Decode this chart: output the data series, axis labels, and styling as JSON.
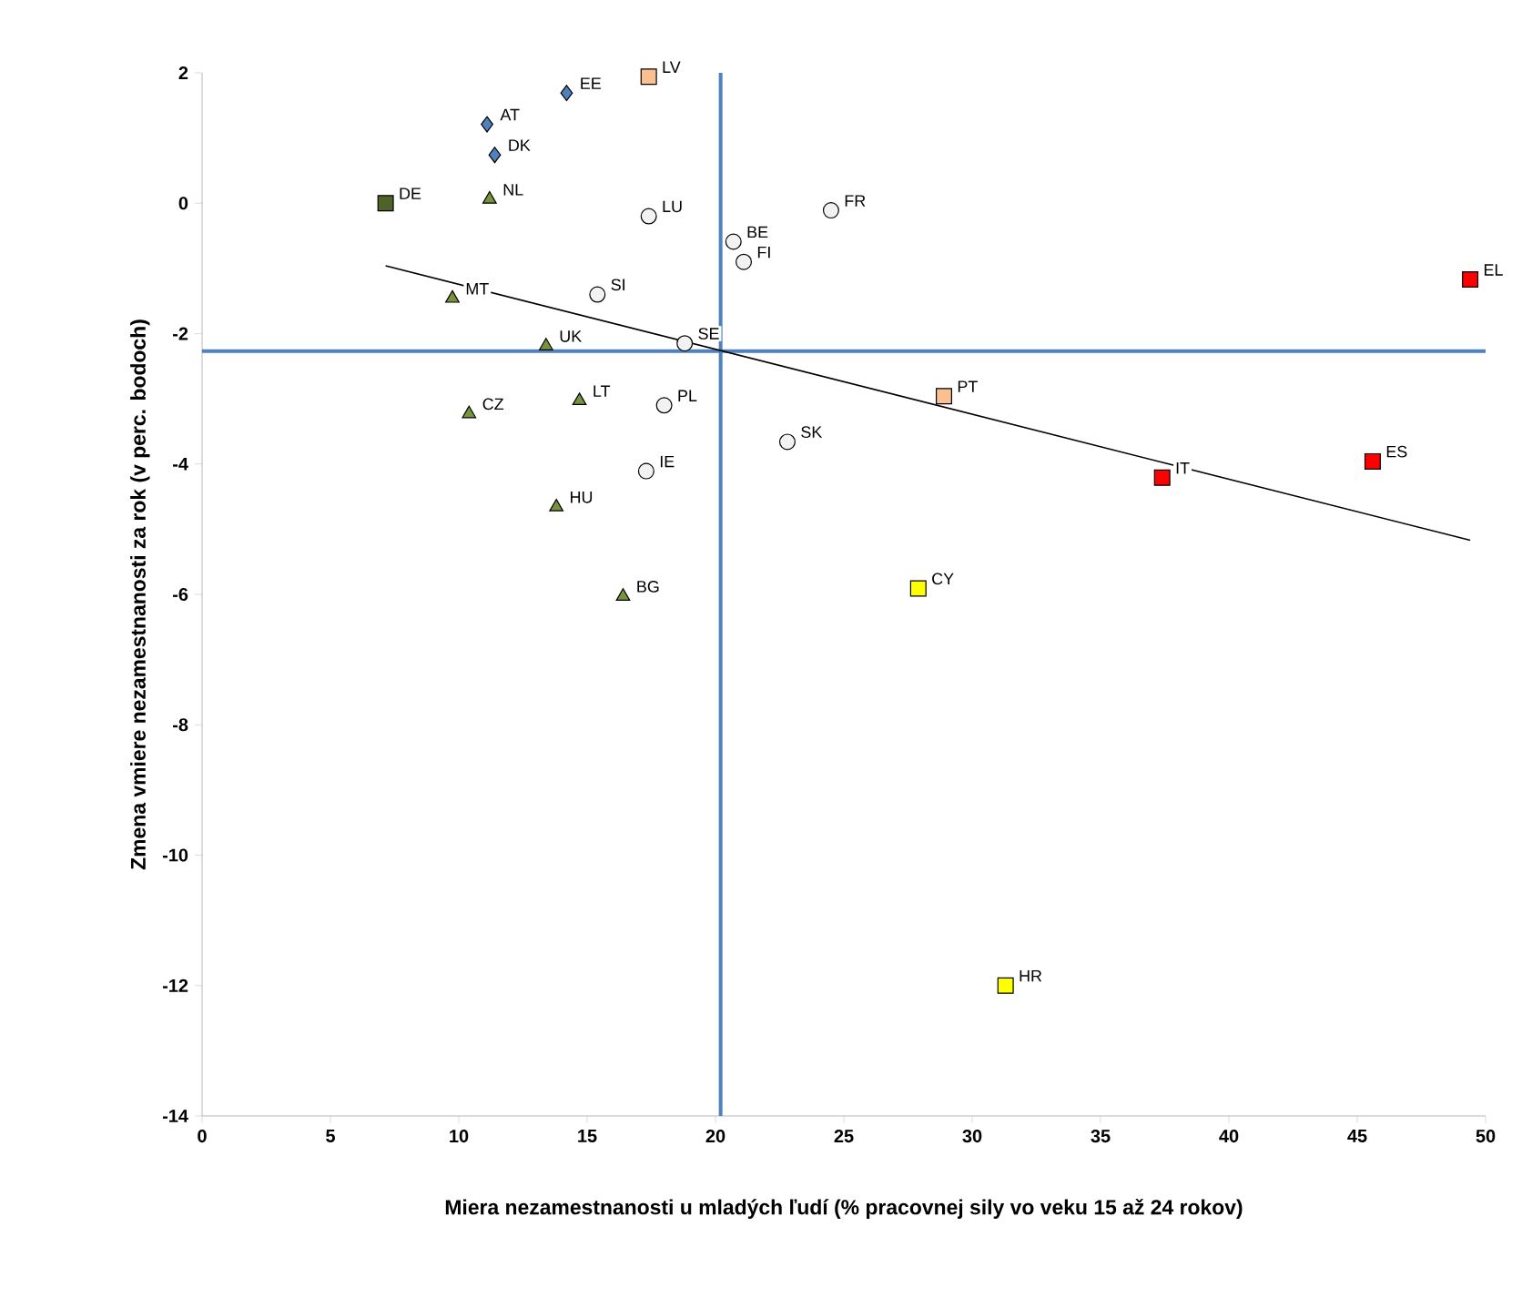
{
  "chart_data": {
    "type": "scatter",
    "xlabel": "Miera nezamestnanosti u mladých ľudí (% pracovnej sily vo veku 15 až 24 rokov)",
    "ylabel": "Zmena vmiere nezamestnanosti za rok (v perc. bodoch)",
    "xlim": [
      0,
      50
    ],
    "xticks": [
      0,
      5,
      10,
      15,
      20,
      25,
      30,
      35,
      40,
      45,
      50
    ],
    "ylim": [
      -14,
      2
    ],
    "yticks": [
      -14,
      -12,
      -10,
      -8,
      -6,
      -4,
      -2,
      0,
      2
    ],
    "grid": false,
    "series": [
      {
        "marker": "diamond",
        "color": "#4f81bd",
        "x": [
          11.1,
          14.2,
          11.4
        ],
        "values": [
          1.21,
          1.69,
          0.74
        ]
      },
      {
        "marker": "square",
        "color": "#4f6228",
        "x": [
          7.15
        ],
        "values": [
          0
        ]
      },
      {
        "marker": "triangle",
        "color": "#77933c",
        "x": [
          11.2,
          9.75,
          13.4,
          14.7,
          10.4,
          13.8,
          16.4
        ],
        "values": [
          0.06,
          -1.46,
          -2.19,
          -3.03,
          -3.23,
          -4.66,
          -6.03
        ]
      },
      {
        "marker": "circle",
        "color": "#f2f2f2",
        "x": [
          17.4,
          20.7,
          21.1,
          24.5,
          15.4,
          18.8,
          18.0,
          22.8,
          17.3
        ],
        "values": [
          -0.2,
          -0.59,
          -0.9,
          -0.11,
          -1.4,
          -2.15,
          -3.1,
          -3.66,
          -4.11
        ]
      },
      {
        "marker": "square",
        "color": "#fac090",
        "x": [
          17.4,
          28.9
        ],
        "values": [
          1.94,
          -2.96
        ]
      },
      {
        "marker": "square",
        "color": "#ff0000",
        "x": [
          37.4,
          45.6,
          49.4
        ],
        "values": [
          -4.21,
          -3.96,
          -1.17
        ]
      },
      {
        "marker": "square",
        "color": "#ffff00",
        "x": [
          27.9,
          31.3
        ],
        "values": [
          -5.91,
          -12.0
        ]
      },
      {
        "type": "line",
        "marker": "none",
        "color": "#000000",
        "x": [
          7.15,
          49.4
        ],
        "values": [
          -0.96,
          -5.17
        ]
      }
    ],
    "ref_lines": [
      {
        "axis": "x",
        "value": 20.2,
        "color": "#4f81bd"
      },
      {
        "axis": "y",
        "value": -2.27,
        "color": "#4f81bd"
      }
    ],
    "annotations": [
      {
        "text": "AT",
        "x": 11.1,
        "y": 1.21
      },
      {
        "text": "EE",
        "x": 14.2,
        "y": 1.69
      },
      {
        "text": "DK",
        "x": 11.4,
        "y": 0.74
      },
      {
        "text": "DE",
        "x": 7.15,
        "y": 0
      },
      {
        "text": "NL",
        "x": 11.2,
        "y": 0.06
      },
      {
        "text": "MT",
        "x": 9.75,
        "y": -1.46
      },
      {
        "text": "UK",
        "x": 13.4,
        "y": -2.19
      },
      {
        "text": "LT",
        "x": 14.7,
        "y": -3.03
      },
      {
        "text": "CZ",
        "x": 10.4,
        "y": -3.23
      },
      {
        "text": "HU",
        "x": 13.8,
        "y": -4.66
      },
      {
        "text": "BG",
        "x": 16.4,
        "y": -6.03
      },
      {
        "text": "LU",
        "x": 17.4,
        "y": -0.2
      },
      {
        "text": "BE",
        "x": 20.7,
        "y": -0.59
      },
      {
        "text": "FI",
        "x": 21.1,
        "y": -0.9
      },
      {
        "text": "FR",
        "x": 24.5,
        "y": -0.11
      },
      {
        "text": "SI",
        "x": 15.4,
        "y": -1.4
      },
      {
        "text": "SE",
        "x": 18.8,
        "y": -2.15
      },
      {
        "text": "PL",
        "x": 18.0,
        "y": -3.1
      },
      {
        "text": "SK",
        "x": 22.8,
        "y": -3.66
      },
      {
        "text": "IE",
        "x": 17.3,
        "y": -4.11
      },
      {
        "text": "LV",
        "x": 17.4,
        "y": 1.94
      },
      {
        "text": "PT",
        "x": 28.9,
        "y": -2.96
      },
      {
        "text": "IT",
        "x": 37.4,
        "y": -4.21
      },
      {
        "text": "ES",
        "x": 45.6,
        "y": -3.96
      },
      {
        "text": "EL",
        "x": 49.4,
        "y": -1.17
      },
      {
        "text": "CY",
        "x": 27.9,
        "y": -5.91
      },
      {
        "text": "HR",
        "x": 31.3,
        "y": -12.0
      }
    ]
  }
}
